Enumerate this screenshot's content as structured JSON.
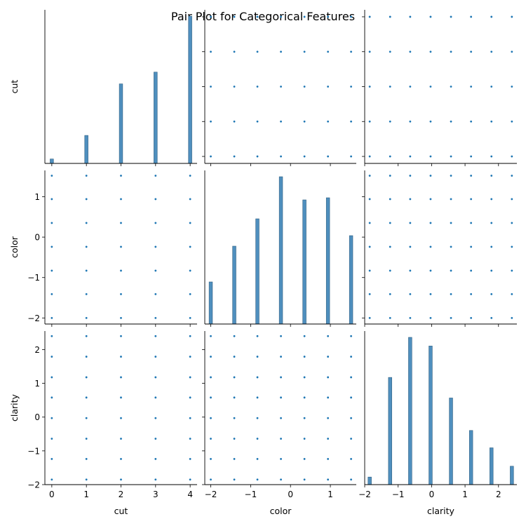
{
  "chart_data": {
    "type": "pairplot",
    "title": "Pair Plot for Categorical Features",
    "variables": [
      "cut",
      "color",
      "clarity"
    ],
    "colors": {
      "bar": "#4f8fbe",
      "bar_edge": "#2e5e80",
      "point": "#1f77b4",
      "axis": "#000000"
    },
    "variable_info": {
      "cut": {
        "label": "cut",
        "range": [
          -0.2,
          4.2
        ],
        "ticks": [
          0,
          1,
          2,
          3,
          4
        ],
        "tick_labels": [
          "0",
          "1",
          "2",
          "3",
          "4"
        ],
        "levels": [
          0,
          1,
          2,
          3,
          4
        ]
      },
      "color": {
        "label": "color",
        "range": [
          -2.15,
          1.65
        ],
        "ticks": [
          -2,
          -1,
          0,
          1
        ],
        "tick_labels": [
          "−2",
          "−1",
          "0",
          "1"
        ],
        "levels": [
          -2.0,
          -1.41,
          -0.83,
          -0.24,
          0.35,
          0.94,
          1.52
        ]
      },
      "clarity": {
        "label": "clarity",
        "range": [
          -2.0,
          2.55
        ],
        "ticks": [
          -2,
          -1,
          0,
          1,
          2
        ],
        "tick_labels": [
          "−2",
          "−1",
          "0",
          "1",
          "2"
        ],
        "levels": [
          -1.85,
          -1.24,
          -0.64,
          -0.03,
          0.58,
          1.18,
          1.79,
          2.4
        ]
      }
    },
    "histograms": {
      "cut": [
        0.12,
        0.76,
        2.16,
        2.48,
        4.0
      ],
      "color": [
        0.4,
        0.74,
        1.0,
        1.4,
        1.18,
        1.2,
        0.84
      ],
      "clarity": [
        0.07,
        0.99,
        1.36,
        1.28,
        0.8,
        0.5,
        0.34,
        0.17
      ]
    }
  }
}
